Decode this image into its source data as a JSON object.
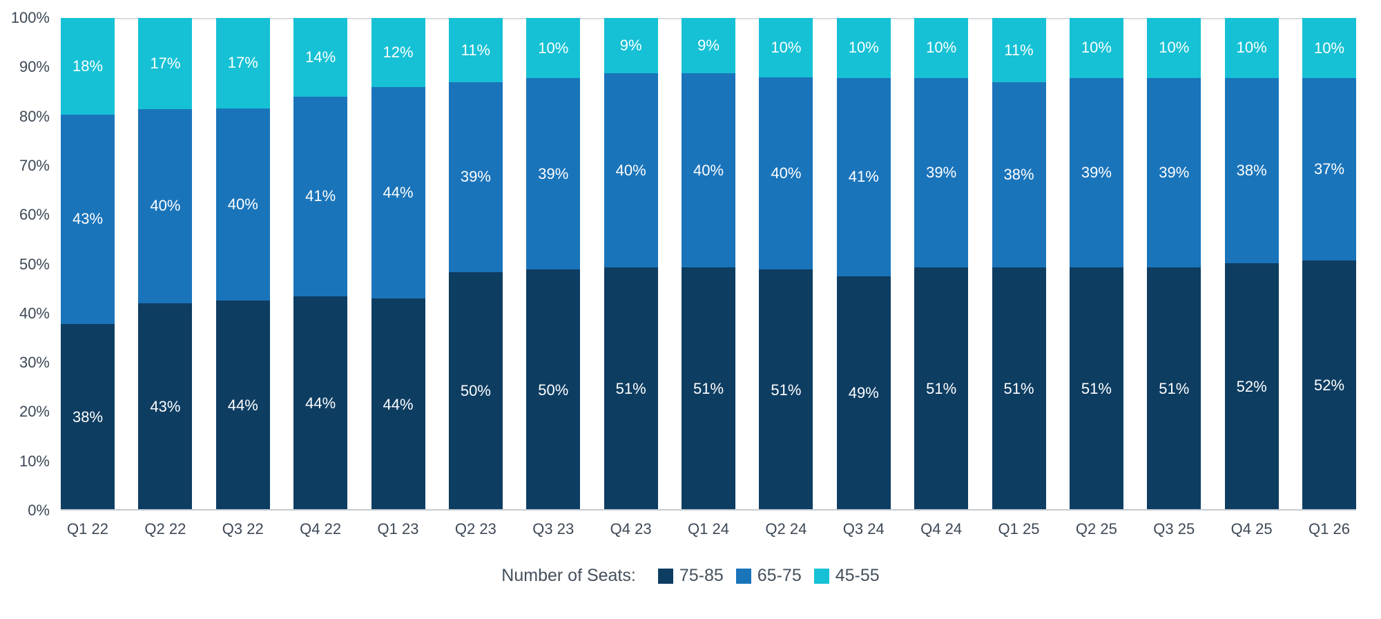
{
  "chart_data": {
    "type": "bar",
    "stacked": true,
    "legend_title": "Number of Seats:",
    "value_suffix": "%",
    "categories": [
      "Q1 22",
      "Q2 22",
      "Q3 22",
      "Q4 22",
      "Q1 23",
      "Q2 23",
      "Q3 23",
      "Q4 23",
      "Q1 24",
      "Q2 24",
      "Q3 24",
      "Q4 24",
      "Q1 25",
      "Q2 25",
      "Q3 25",
      "Q4 25",
      "Q1 26"
    ],
    "series": [
      {
        "name": "75-85",
        "color": "#0e3d62",
        "values": [
          38,
          43,
          44,
          44,
          44,
          50,
          50,
          51,
          51,
          51,
          49,
          51,
          51,
          51,
          51,
          52,
          52
        ]
      },
      {
        "name": "65-75",
        "color": "#1a74ba",
        "values": [
          43,
          40,
          40,
          41,
          44,
          39,
          39,
          40,
          40,
          40,
          41,
          39,
          38,
          39,
          39,
          38,
          37
        ]
      },
      {
        "name": "45-55",
        "color": "#16c1d5",
        "values": [
          18,
          17,
          17,
          14,
          12,
          11,
          10,
          9,
          9,
          10,
          10,
          10,
          11,
          10,
          10,
          10,
          10
        ]
      }
    ],
    "y_axis": {
      "min": 0,
      "max": 100,
      "step": 10,
      "ticks": [
        "0%",
        "10%",
        "20%",
        "30%",
        "40%",
        "50%",
        "60%",
        "70%",
        "80%",
        "90%",
        "100%"
      ]
    },
    "layout": {
      "grid": "top-and-bottom-lines-only",
      "legend_position": "bottom-center"
    }
  }
}
